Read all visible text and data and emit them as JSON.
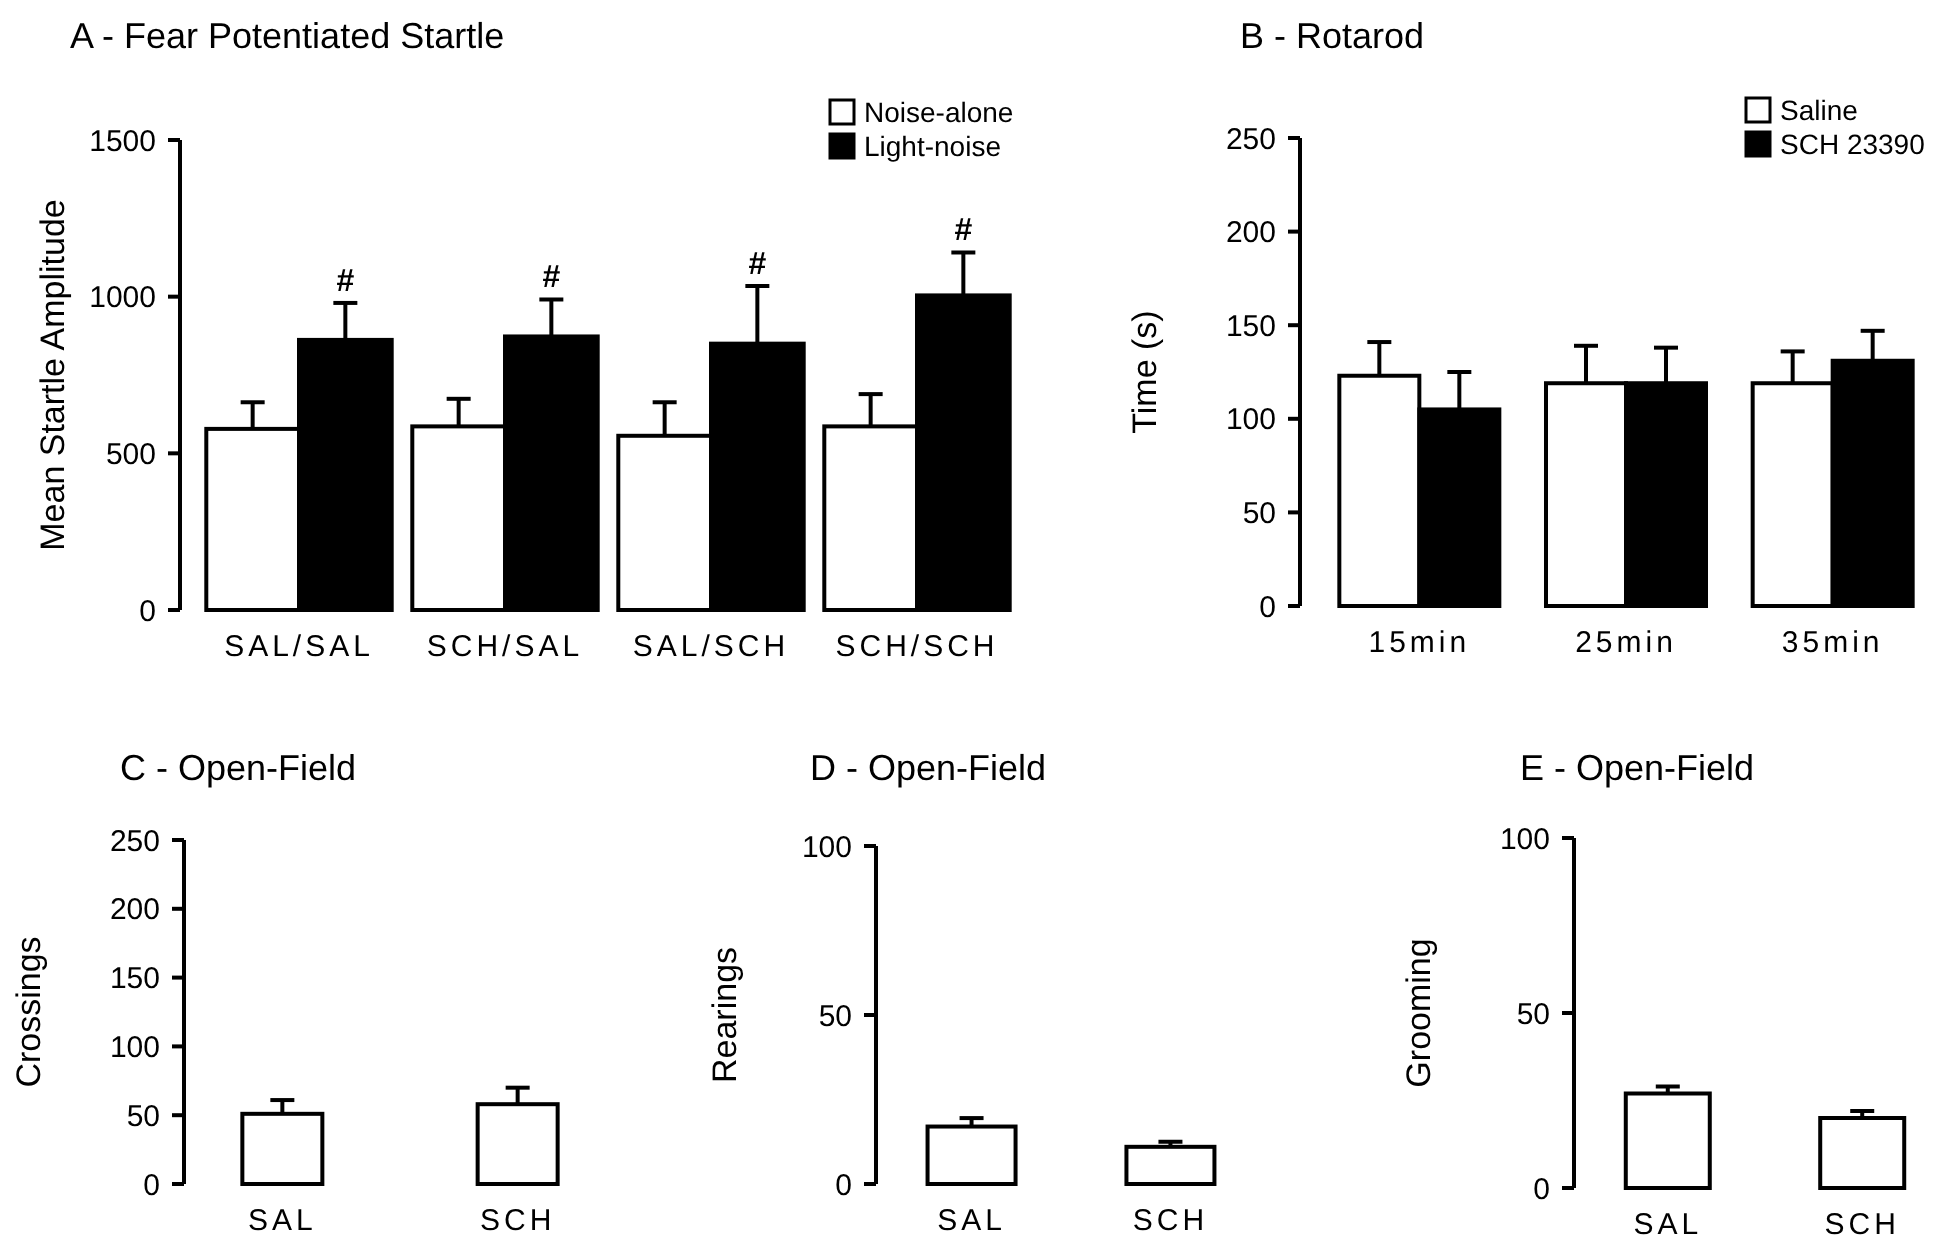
{
  "chart_data": [
    {
      "type": "bar",
      "title": "A - Fear Potentiated Startle",
      "ylabel": "Mean Startle Amplitude",
      "categories": [
        "SAL/SAL",
        "SCH/SAL",
        "SAL/SCH",
        "SCH/SCH"
      ],
      "series": [
        {
          "name": "Noise-alone",
          "color": "#ffffff",
          "values": [
            578,
            586,
            556,
            586
          ],
          "errors": [
            [
              578,
              663
            ],
            [
              586,
              674
            ],
            [
              556,
              663
            ],
            [
              586,
              689
            ]
          ]
        },
        {
          "name": "Light-noise",
          "color": "#000000",
          "values": [
            862,
            873,
            850,
            1004
          ],
          "errors": [
            [
              862,
              980
            ],
            [
              873,
              991
            ],
            [
              850,
              1034
            ],
            [
              1004,
              1141
            ]
          ]
        }
      ],
      "ylim": [
        0,
        1500
      ],
      "yticks": [
        0,
        500,
        1000,
        1500
      ],
      "legend": "top right",
      "annotations": [
        "#",
        "#",
        "#",
        "#"
      ]
    },
    {
      "type": "bar",
      "title": "B - Rotarod",
      "ylabel": "Time (s)",
      "categories": [
        "15min",
        "25min",
        "35min"
      ],
      "series": [
        {
          "name": "Saline",
          "color": "#ffffff",
          "values": [
            123,
            119,
            119
          ],
          "errors": [
            [
              123,
              141
            ],
            [
              119,
              139
            ],
            [
              119,
              136
            ]
          ]
        },
        {
          "name": "SCH 23390",
          "color": "#000000",
          "values": [
            105,
            119,
            131
          ],
          "errors": [
            [
              105,
              125
            ],
            [
              119,
              138
            ],
            [
              131,
              147
            ]
          ]
        }
      ],
      "ylim": [
        0,
        250
      ],
      "yticks": [
        0,
        50,
        100,
        150,
        200,
        250
      ],
      "legend": "top right"
    },
    {
      "type": "bar",
      "title": "C - Open-Field",
      "ylabel": "Crossings",
      "categories": [
        "SAL",
        "SCH"
      ],
      "series": [
        {
          "color": "#ffffff",
          "values": [
            51,
            58
          ],
          "errors": [
            [
              51,
              61
            ],
            [
              58,
              70
            ]
          ]
        }
      ],
      "ylim": [
        0,
        250
      ],
      "yticks": [
        0,
        50,
        100,
        150,
        200,
        250
      ]
    },
    {
      "type": "bar",
      "title": "D - Open-Field",
      "ylabel": "Rearings",
      "categories": [
        "SAL",
        "SCH"
      ],
      "series": [
        {
          "color": "#ffffff",
          "values": [
            17,
            11
          ],
          "errors": [
            [
              17,
              19.5
            ],
            [
              11,
              12.5
            ]
          ]
        }
      ],
      "ylim": [
        0,
        100
      ],
      "yticks": [
        0,
        50,
        100
      ]
    },
    {
      "type": "bar",
      "title": "E - Open-Field",
      "ylabel": "Grooming",
      "categories": [
        "SAL",
        "SCH"
      ],
      "series": [
        {
          "color": "#ffffff",
          "values": [
            27,
            20
          ],
          "errors": [
            [
              27,
              29
            ],
            [
              20,
              22
            ]
          ]
        }
      ],
      "ylim": [
        0,
        100
      ],
      "yticks": [
        0,
        50,
        100
      ]
    }
  ]
}
